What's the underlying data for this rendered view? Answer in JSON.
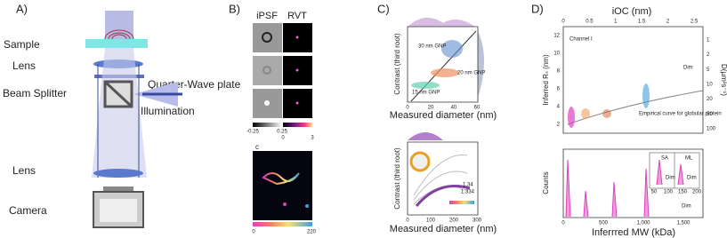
{
  "panel_a": {
    "label": "A)",
    "sample": "Sample",
    "lens_top": "Lens",
    "quarter_wave": "Quarter-Wave plate",
    "beam_splitter": "Beam Splitter",
    "illumination": "Illumination",
    "lens_bottom": "Lens",
    "camera": "Camera"
  },
  "panel_b": {
    "label": "B)",
    "col_ipsf": "iPSF",
    "col_rvt": "RVT",
    "cbar_ipsf": [
      "-0.25",
      "0.25"
    ],
    "cbar_rvt": [
      "0",
      "3"
    ],
    "sub_label": "c",
    "cbar_track": [
      "0",
      "220"
    ]
  },
  "panel_c": {
    "label": "C)",
    "top": {
      "ylabel": "Contrast (third root)",
      "xlabel": "Measured diameter (nm)",
      "xticks": [
        "0",
        "20",
        "40",
        "60"
      ],
      "annotations": [
        "30 nm GNP",
        "20 nm GNP",
        "15 nm GNP"
      ]
    },
    "bottom": {
      "ylabel": "Contrast (third root)",
      "xlabel": "Measured diameter (nm)",
      "xticks": [
        "0",
        "100",
        "200",
        "300"
      ],
      "annotations": [
        "1.34",
        "1.334"
      ]
    }
  },
  "panel_d": {
    "label": "D)",
    "top": {
      "top_axis_label": "iOC (nm)",
      "top_ticks": [
        "0",
        "0.5",
        "1",
        "1.5",
        "2",
        "2.5"
      ],
      "channel": "Channel I",
      "ylabel": "Inferred Rₛ (nm)",
      "yticks": [
        "2",
        "4",
        "6",
        "8",
        "10",
        "12"
      ],
      "right_label": "D(µm²s⁻¹)",
      "right_ticks": [
        "1",
        "2",
        "5",
        "10",
        "20",
        "50",
        "100"
      ],
      "curve_note": "Empirical curve for globular protein",
      "dim": "Dim"
    },
    "bottom": {
      "ylabel": "Counts",
      "xlabel": "Inferrred MW (kDa)",
      "xticks": [
        "0",
        "500",
        "1,000",
        "1,500"
      ],
      "inset_left": "SA",
      "inset_right": "ML",
      "inset_dim_left": "Dim",
      "inset_dim_right": "Dim",
      "inset_ticks": [
        "50",
        "100",
        "150",
        "200"
      ],
      "dim": "Dim"
    }
  }
}
